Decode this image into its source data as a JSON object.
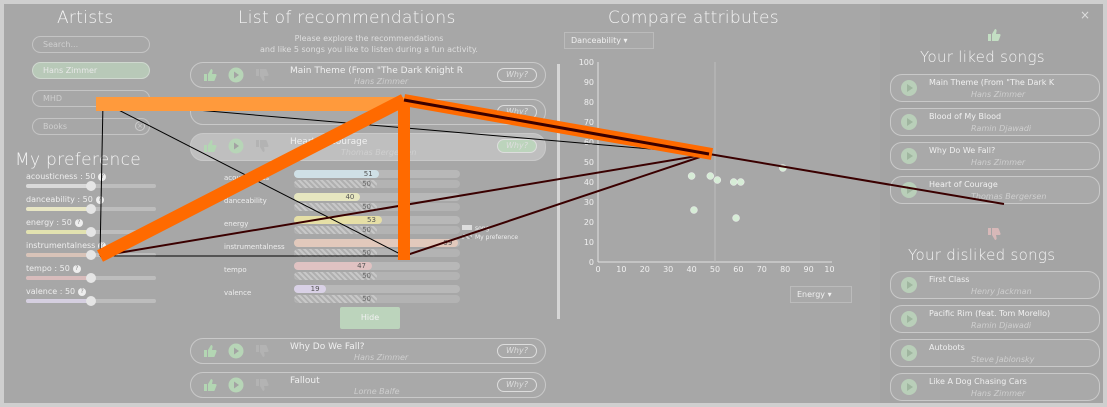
{
  "artists": {
    "title": "Artists",
    "search_placeholder": "Search...",
    "items": [
      {
        "label": "Hans Zimmer"
      },
      {
        "label": "MHD"
      },
      {
        "label": "Books"
      }
    ]
  },
  "preferences": {
    "title": "My preference",
    "items": [
      {
        "label": "acousticness : 50",
        "value": 50,
        "color": "#d9d9d9"
      },
      {
        "label": "danceability : 50",
        "value": 50,
        "color": "#e8e6c4"
      },
      {
        "label": "energy : 50",
        "value": 50,
        "color": "#e2e2b0"
      },
      {
        "label": "instrumentalness",
        "value": 50,
        "color": "#d8c3b8"
      },
      {
        "label": "tempo : 50",
        "value": 50,
        "color": "#d8bcbc"
      },
      {
        "label": "valence : 50",
        "value": 50,
        "color": "#d5cfe0"
      }
    ]
  },
  "recommendations": {
    "title": "List of recommendations",
    "intro_line1": "Please explore the recommendations",
    "intro_line2": "and like 5 songs you like to listen during a fun activity.",
    "why_label": "Why?",
    "hide_label": "Hide",
    "songs": [
      {
        "title": "Main Theme (From \"The Dark Knight R",
        "artist": "Hans Zimmer"
      },
      {
        "title": "",
        "artist": ""
      },
      {
        "title": "Heart of Courage",
        "artist": "Thomas Bergersen"
      },
      {
        "title": "Why Do We Fall?",
        "artist": "Hans Zimmer"
      },
      {
        "title": "Fallout",
        "artist": "Lorne Balfe"
      }
    ],
    "attributes": [
      {
        "label": "acousticness",
        "song": 51,
        "pref": 50
      },
      {
        "label": "danceability",
        "song": 40,
        "pref": 50
      },
      {
        "label": "energy",
        "song": 53,
        "pref": 50
      },
      {
        "label": "instrumentalness",
        "song": 99,
        "pref": 50
      },
      {
        "label": "tempo",
        "song": 47,
        "pref": 50
      },
      {
        "label": "valence",
        "song": 19,
        "pref": 50
      }
    ],
    "legend_song": "song",
    "legend_pref": "My preference"
  },
  "compare": {
    "title": "Compare attributes",
    "x_select": "Energy",
    "y_select": "Danceability",
    "chart_data": {
      "type": "scatter",
      "xlim": [
        0,
        100
      ],
      "ylim": [
        0,
        100
      ],
      "x_ticks": [
        0,
        10,
        20,
        30,
        40,
        50,
        60,
        70,
        80,
        90,
        100
      ],
      "y_ticks": [
        0,
        10,
        20,
        30,
        40,
        50,
        60,
        70,
        80,
        90,
        100
      ],
      "points": [
        {
          "x": 40,
          "y": 43,
          "color": "#d6ecd6"
        },
        {
          "x": 48,
          "y": 43,
          "color": "#d6ecd6"
        },
        {
          "x": 51,
          "y": 41,
          "color": "#d6ecd6"
        },
        {
          "x": 58,
          "y": 40,
          "color": "#d6ecd6"
        },
        {
          "x": 61,
          "y": 40,
          "color": "#d6ecd6"
        },
        {
          "x": 41,
          "y": 26,
          "color": "#d6ecd6"
        },
        {
          "x": 59,
          "y": 22,
          "color": "#d6ecd6"
        },
        {
          "x": 79,
          "y": 47,
          "color": "#d6ecd6"
        }
      ]
    }
  },
  "liked": {
    "title": "Your liked songs",
    "songs": [
      {
        "title": "Main Theme (From \"The Dark K",
        "artist": "Hans Zimmer"
      },
      {
        "title": "Blood of My Blood",
        "artist": "Ramin Djawadi"
      },
      {
        "title": "Why Do We Fall?",
        "artist": "Hans Zimmer"
      },
      {
        "title": "Heart of Courage",
        "artist": "Thomas Bergersen"
      }
    ]
  },
  "disliked": {
    "title": "Your disliked songs",
    "songs": [
      {
        "title": "First Class",
        "artist": "Henry Jackman"
      },
      {
        "title": "Pacific Rim (feat. Tom Morello)",
        "artist": "Ramin Djawadi"
      },
      {
        "title": "Autobots",
        "artist": "Steve Jablonsky"
      },
      {
        "title": "Like A Dog Chasing Cars",
        "artist": "Hans Zimmer"
      }
    ]
  },
  "close_glyph": "×",
  "overlay": {
    "thick_color": "#ff6a00",
    "light_color": "#ff9a3c",
    "dark_color": "#3a0000",
    "thin_color": "#000000"
  }
}
